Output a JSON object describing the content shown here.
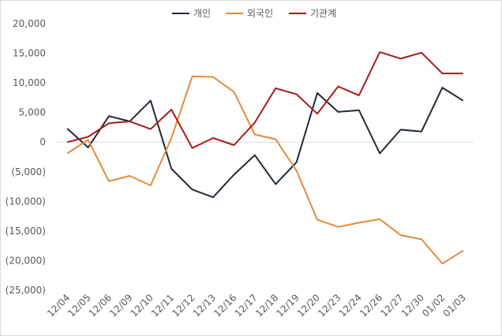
{
  "chart_data": {
    "type": "line",
    "categories": [
      "12/04",
      "12/05",
      "12/06",
      "12/09",
      "12/10",
      "12/11",
      "12/12",
      "12/13",
      "12/16",
      "12/17",
      "12/18",
      "12/19",
      "12/20",
      "12/23",
      "12/24",
      "12/26",
      "12/27",
      "12/30",
      "01/02",
      "01/03"
    ],
    "series": [
      {
        "name": "개인",
        "color": "#1f2a36",
        "values": [
          2300,
          -900,
          4400,
          3500,
          7000,
          -4500,
          -8000,
          -9300,
          -5500,
          -2200,
          -7100,
          -3400,
          8300,
          5100,
          5400,
          -1900,
          2100,
          1800,
          9200,
          7000
        ]
      },
      {
        "name": "외국인",
        "color": "#e58a3b",
        "values": [
          -1900,
          400,
          -6600,
          -5700,
          -7300,
          700,
          11100,
          11000,
          8500,
          1300,
          500,
          -4800,
          -13100,
          -14300,
          -13600,
          -13000,
          -15700,
          -16400,
          -20500,
          -18300
        ]
      },
      {
        "name": "기관계",
        "color": "#a51c1c",
        "values": [
          0,
          900,
          3200,
          3500,
          2200,
          5500,
          -1000,
          700,
          -500,
          3300,
          9100,
          8100,
          4800,
          9400,
          7900,
          15200,
          14100,
          15100,
          11600,
          11600
        ]
      }
    ],
    "ylim": [
      -25000,
      20000
    ],
    "yticks": [
      20000,
      15000,
      10000,
      5000,
      0,
      -5000,
      -10000,
      -15000,
      -20000,
      -25000
    ],
    "ytick_labels": [
      "20,000",
      "15,000",
      "10,000",
      "5,000",
      "0",
      "(5,000)",
      "(10,000)",
      "(15,000)",
      "(20,000)",
      "(25,000)"
    ],
    "legend_position": "top-center",
    "grid": false
  }
}
